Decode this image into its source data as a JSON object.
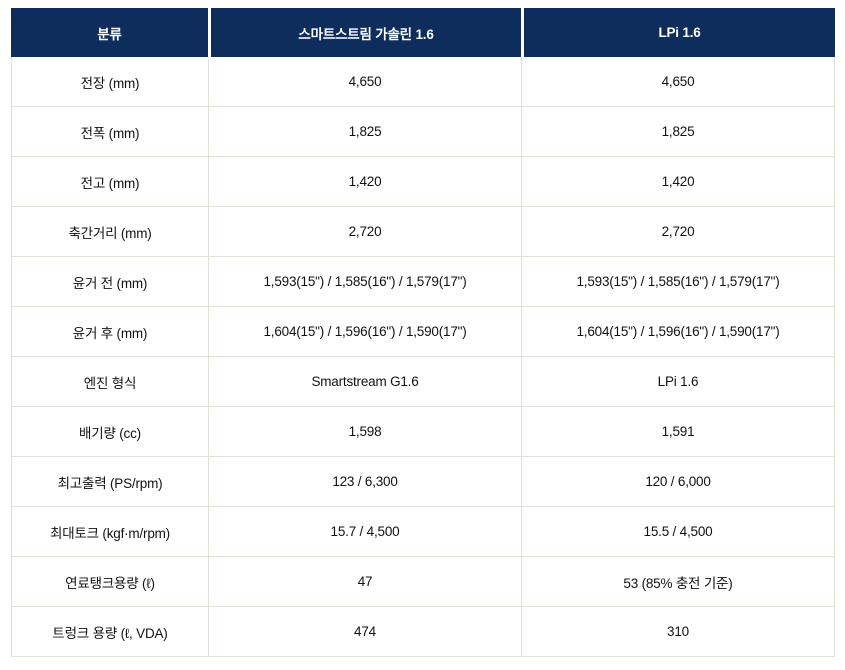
{
  "colors": {
    "header_bg": "#0e2d5c",
    "header_text": "#ffffff",
    "border": "#e5e0d9",
    "body_text": "#111111"
  },
  "table": {
    "columns": [
      "분류",
      "스마트스트림 가솔린 1.6",
      "LPi 1.6"
    ],
    "rows": [
      {
        "label": "전장 (mm)",
        "values": [
          "4,650",
          "4,650"
        ]
      },
      {
        "label": "전폭 (mm)",
        "values": [
          "1,825",
          "1,825"
        ]
      },
      {
        "label": "전고 (mm)",
        "values": [
          "1,420",
          "1,420"
        ]
      },
      {
        "label": "축간거리 (mm)",
        "values": [
          "2,720",
          "2,720"
        ]
      },
      {
        "label": "윤거 전 (mm)",
        "values": [
          "1,593(15\") / 1,585(16\") / 1,579(17\")",
          "1,593(15\") / 1,585(16\") / 1,579(17\")"
        ]
      },
      {
        "label": "윤거 후 (mm)",
        "values": [
          "1,604(15\") / 1,596(16\") / 1,590(17\")",
          "1,604(15\") / 1,596(16\") / 1,590(17\")"
        ]
      },
      {
        "label": "엔진 형식",
        "values": [
          "Smartstream G1.6",
          "LPi 1.6"
        ]
      },
      {
        "label": "배기량 (cc)",
        "values": [
          "1,598",
          "1,591"
        ]
      },
      {
        "label": "최고출력 (PS/rpm)",
        "values": [
          "123 / 6,300",
          "120 / 6,000"
        ]
      },
      {
        "label": "최대토크 (kgf·m/rpm)",
        "values": [
          "15.7 / 4,500",
          "15.5 / 4,500"
        ]
      },
      {
        "label": "연료탱크용량 (ℓ)",
        "values": [
          "47",
          "53 (85% 충전 기준)"
        ]
      },
      {
        "label": "트렁크 용량 (ℓ, VDA)",
        "values": [
          "474",
          "310"
        ]
      }
    ]
  }
}
